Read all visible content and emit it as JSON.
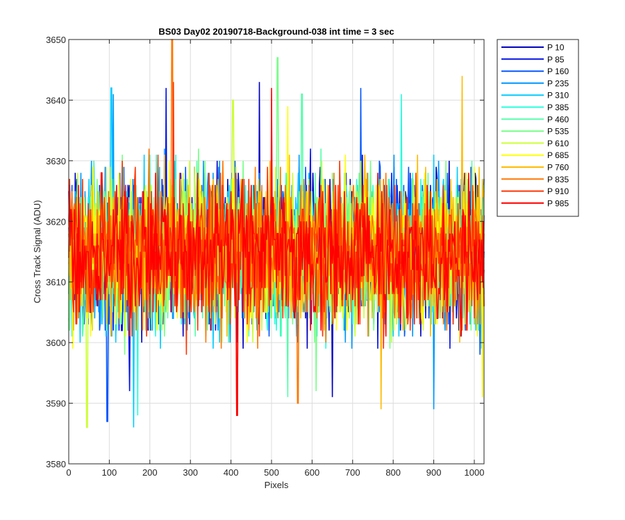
{
  "chart_data": {
    "type": "line",
    "title": "BS03 Day02 20190718-Background-038 int time = 3 sec",
    "xlabel": "Pixels",
    "ylabel": "Cross Track Signal (ADU)",
    "xlim": [
      0,
      1024
    ],
    "ylim": [
      3580,
      3650
    ],
    "xticks": [
      0,
      100,
      200,
      300,
      400,
      500,
      600,
      700,
      800,
      900,
      1000
    ],
    "yticks": [
      3580,
      3590,
      3600,
      3610,
      3620,
      3630,
      3640,
      3650
    ],
    "grid": true,
    "legend_position": "outside-top-right",
    "series": [
      {
        "name": "P 10",
        "color": "#0000bf",
        "mean": 3615,
        "spread": 6.2,
        "max": 3643,
        "max_x": 470,
        "min": 3591,
        "min_x": 650
      },
      {
        "name": "P 85",
        "color": "#0011e6",
        "mean": 3615,
        "spread": 6.2,
        "max": 3642,
        "max_x": 240,
        "min": 3592,
        "min_x": 150
      },
      {
        "name": "P 160",
        "color": "#0055ff",
        "mean": 3615,
        "spread": 6.2,
        "max": 3642,
        "max_x": 720,
        "min": 3587,
        "min_x": 95
      },
      {
        "name": "P 235",
        "color": "#0099ff",
        "mean": 3615,
        "spread": 6.2,
        "max": 3641,
        "max_x": 110,
        "min": 3589,
        "min_x": 900
      },
      {
        "name": "P 310",
        "color": "#00ccff",
        "mean": 3615,
        "spread": 6.2,
        "max": 3642,
        "max_x": 105,
        "min": 3586,
        "min_x": 160
      },
      {
        "name": "P 385",
        "color": "#22ffdd",
        "mean": 3615,
        "spread": 6.2,
        "max": 3641,
        "max_x": 820,
        "min": 3588,
        "min_x": 170
      },
      {
        "name": "P 460",
        "color": "#55ffaa",
        "mean": 3615,
        "spread": 6.2,
        "max": 3641,
        "max_x": 575,
        "min": 3591,
        "min_x": 540
      },
      {
        "name": "P 535",
        "color": "#77ff88",
        "mean": 3615,
        "spread": 6.2,
        "max": 3647,
        "max_x": 515,
        "min": 3592,
        "min_x": 610
      },
      {
        "name": "P 610",
        "color": "#ccff33",
        "mean": 3615,
        "spread": 6.2,
        "max": 3640,
        "max_x": 405,
        "min": 3586,
        "min_x": 45
      },
      {
        "name": "P 685",
        "color": "#ffff00",
        "mean": 3615,
        "spread": 6.2,
        "max": 3639,
        "max_x": 540,
        "min": 3591,
        "min_x": 1020
      },
      {
        "name": "P 760",
        "color": "#ffbb00",
        "mean": 3615,
        "spread": 6.2,
        "max": 3644,
        "max_x": 970,
        "min": 3589,
        "min_x": 770
      },
      {
        "name": "P 835",
        "color": "#ff7700",
        "mean": 3615,
        "spread": 6.2,
        "max": 3650,
        "max_x": 255,
        "min": 3590,
        "min_x": 565
      },
      {
        "name": "P 910",
        "color": "#ff3300",
        "mean": 3615,
        "spread": 6.2,
        "max": 3643,
        "max_x": 258,
        "min": 3588,
        "min_x": 415
      },
      {
        "name": "P 985",
        "color": "#ff0000",
        "mean": 3615,
        "spread": 5.5,
        "max": 3642,
        "max_x": 500,
        "min": 3588,
        "min_x": 415
      }
    ]
  }
}
